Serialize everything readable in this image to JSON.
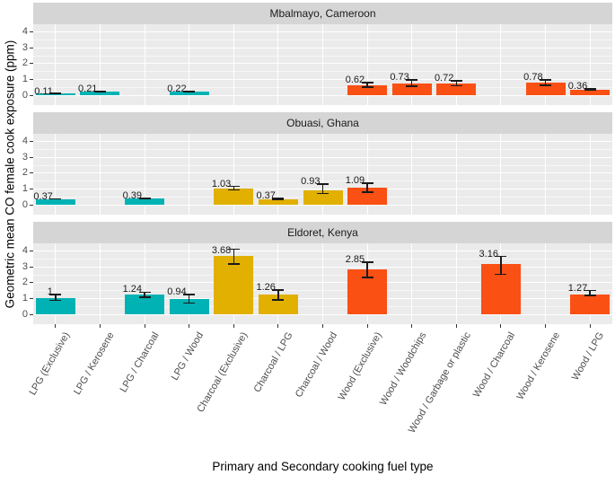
{
  "chart_data": {
    "type": "bar",
    "title": "",
    "xlabel": "Primary and Secondary cooking fuel type",
    "ylabel": "Geometric mean CO female cook exposure (ppm)",
    "ylim": [
      0,
      4.5
    ],
    "yticks": [
      0,
      1,
      2,
      3,
      4
    ],
    "yticks_minor": [
      0.5,
      1.5,
      2.5,
      3.5
    ],
    "grid": "white major and minor gridlines on gray panel",
    "legend": "none",
    "errorbars": true,
    "categories": [
      "LPG (Exclusive)",
      "LPG / Kerosene",
      "LPG / Charcoal",
      "LPG / Wood",
      "Charcoal (Exclusive)",
      "Charcoal / LPG",
      "Charcoal / Wood",
      "Wood (Exclusive)",
      "Wood / Woodchips",
      "Wood / Garbage or plastic",
      "Wood / Charcoal",
      "Wood / Kerosene",
      "Wood / LPG"
    ],
    "colors": {
      "LPG": "#00B2B4",
      "Charcoal": "#E1B000",
      "Wood": "#FA5014"
    },
    "panel_bg": "#EBEBEB",
    "strip_bg": "#D5D5D5",
    "facets": [
      {
        "title": "Mbalmayo, Cameroon",
        "bars": [
          {
            "category": "LPG (Exclusive)",
            "value": 0.11,
            "label": "0.11",
            "ci_low": 0.08,
            "ci_high": 0.14,
            "group": "LPG"
          },
          {
            "category": "LPG / Kerosene",
            "value": 0.21,
            "label": "0.21",
            "ci_low": 0.17,
            "ci_high": 0.26,
            "group": "LPG"
          },
          {
            "category": "LPG / Wood",
            "value": 0.22,
            "label": "0.22",
            "ci_low": 0.17,
            "ci_high": 0.28,
            "group": "LPG"
          },
          {
            "category": "Wood (Exclusive)",
            "value": 0.62,
            "label": "0.62",
            "ci_low": 0.48,
            "ci_high": 0.85,
            "group": "Wood"
          },
          {
            "category": "Wood / Woodchips",
            "value": 0.73,
            "label": "0.73",
            "ci_low": 0.52,
            "ci_high": 1.02,
            "group": "Wood"
          },
          {
            "category": "Wood / Garbage or plastic",
            "value": 0.72,
            "label": "0.72",
            "ci_low": 0.55,
            "ci_high": 0.95,
            "group": "Wood"
          },
          {
            "category": "Wood / Kerosene",
            "value": 0.78,
            "label": "0.78",
            "ci_low": 0.58,
            "ci_high": 1.02,
            "group": "Wood"
          },
          {
            "category": "Wood / LPG",
            "value": 0.36,
            "label": "0.36",
            "ci_low": 0.29,
            "ci_high": 0.45,
            "group": "Wood"
          }
        ]
      },
      {
        "title": "Obuasi, Ghana",
        "bars": [
          {
            "category": "LPG (Exclusive)",
            "value": 0.37,
            "label": "0.37",
            "ci_low": 0.33,
            "ci_high": 0.42,
            "group": "LPG"
          },
          {
            "category": "LPG / Charcoal",
            "value": 0.39,
            "label": "0.39",
            "ci_low": 0.34,
            "ci_high": 0.45,
            "group": "LPG"
          },
          {
            "category": "Charcoal (Exclusive)",
            "value": 1.03,
            "label": "1.03",
            "ci_low": 0.9,
            "ci_high": 1.2,
            "group": "Charcoal"
          },
          {
            "category": "Charcoal / LPG",
            "value": 0.37,
            "label": "0.37",
            "ci_low": 0.3,
            "ci_high": 0.46,
            "group": "Charcoal"
          },
          {
            "category": "Charcoal / Wood",
            "value": 0.93,
            "label": "0.93",
            "ci_low": 0.68,
            "ci_high": 1.35,
            "group": "Charcoal"
          },
          {
            "category": "Wood (Exclusive)",
            "value": 1.09,
            "label": "1.09",
            "ci_low": 0.75,
            "ci_high": 1.4,
            "group": "Wood"
          }
        ]
      },
      {
        "title": "Eldoret, Kenya",
        "bars": [
          {
            "category": "LPG (Exclusive)",
            "value": 1,
            "label": "1",
            "ci_low": 0.85,
            "ci_high": 1.28,
            "group": "LPG"
          },
          {
            "category": "LPG / Charcoal",
            "value": 1.24,
            "label": "1.24",
            "ci_low": 1.05,
            "ci_high": 1.45,
            "group": "LPG"
          },
          {
            "category": "LPG / Wood",
            "value": 0.94,
            "label": "0.94",
            "ci_low": 0.68,
            "ci_high": 1.3,
            "group": "LPG"
          },
          {
            "category": "Charcoal (Exclusive)",
            "value": 3.68,
            "label": "3.68",
            "ci_low": 3.15,
            "ci_high": 4.15,
            "group": "Charcoal"
          },
          {
            "category": "Charcoal / LPG",
            "value": 1.26,
            "label": "1.26",
            "ci_low": 0.88,
            "ci_high": 1.58,
            "group": "Charcoal"
          },
          {
            "category": "Wood (Exclusive)",
            "value": 2.85,
            "label": "2.85",
            "ci_low": 2.3,
            "ci_high": 3.35,
            "group": "Wood"
          },
          {
            "category": "Wood / Charcoal",
            "value": 3.16,
            "label": "3.16",
            "ci_low": 2.5,
            "ci_high": 3.7,
            "group": "Wood"
          },
          {
            "category": "Wood / LPG",
            "value": 1.27,
            "label": "1.27",
            "ci_low": 1.15,
            "ci_high": 1.55,
            "group": "Wood"
          }
        ]
      }
    ]
  }
}
